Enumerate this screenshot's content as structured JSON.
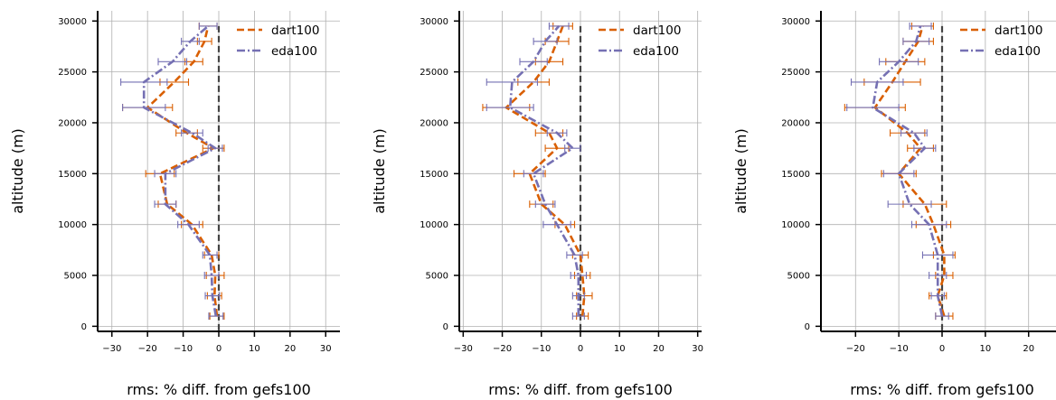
{
  "colors": {
    "dart": "#d95f02",
    "eda": "#7570b3",
    "zero_line": "#444444",
    "grid": "#b0b0b0",
    "axes": "#000000"
  },
  "chart_data": [
    {
      "type": "line",
      "xlabel": "rms: % diff. from gefs100",
      "ylabel": "altitude (m)",
      "xlim": [
        -34,
        34
      ],
      "ylim": [
        -500,
        31000
      ],
      "xticks": [
        -30,
        -20,
        -10,
        0,
        10,
        20,
        30
      ],
      "yticks": [
        0,
        5000,
        10000,
        15000,
        20000,
        25000,
        30000
      ],
      "grid": true,
      "legend": "top-right",
      "reference_line_x": 0,
      "y": [
        1000,
        3000,
        5000,
        7000,
        10000,
        12000,
        15000,
        17500,
        19000,
        21500,
        24000,
        26000,
        28000,
        29500
      ],
      "series": [
        {
          "name": "dart100",
          "style": "dashed",
          "x": [
            -0.5,
            -1.2,
            -1.0,
            -2.0,
            -7.5,
            -14.5,
            -16.5,
            -1.5,
            -9.0,
            -20.0,
            -12.5,
            -7.0,
            -4.0,
            -3.0
          ],
          "err": [
            2.0,
            2.0,
            2.5,
            2.0,
            3.0,
            2.5,
            4.0,
            3.0,
            3.0,
            7.0,
            4.0,
            2.5,
            2.0,
            2.5
          ]
        },
        {
          "name": "eda100",
          "style": "dashdot",
          "x": [
            -0.8,
            -1.8,
            -2.0,
            -2.5,
            -8.5,
            -15.0,
            -15.0,
            -1.0,
            -7.5,
            -21.0,
            -21.0,
            -13.0,
            -8.0,
            -3.0
          ],
          "err": [
            2.0,
            2.0,
            2.0,
            2.0,
            3.0,
            3.0,
            3.0,
            2.0,
            3.0,
            6.0,
            6.5,
            4.0,
            2.5,
            2.5
          ]
        }
      ]
    },
    {
      "type": "line",
      "xlabel": "rms: % diff. from gefs100",
      "ylabel": "altitude (m)",
      "xlim": [
        -31,
        31
      ],
      "ylim": [
        -500,
        31000
      ],
      "xticks": [
        -30,
        -20,
        -10,
        0,
        10,
        20,
        30
      ],
      "yticks": [
        0,
        5000,
        10000,
        15000,
        20000,
        25000,
        30000
      ],
      "grid": true,
      "legend": "top-right",
      "reference_line_x": 0,
      "y": [
        1000,
        3000,
        5000,
        7000,
        10000,
        12000,
        15000,
        17500,
        19000,
        21500,
        24000,
        26000,
        28000,
        29500
      ],
      "series": [
        {
          "name": "dart100",
          "style": "dashed",
          "x": [
            0.5,
            1.0,
            0.5,
            0.0,
            -4.0,
            -10.0,
            -13.0,
            -6.0,
            -8.0,
            -19.0,
            -12.0,
            -8.0,
            -6.0,
            -4.5
          ],
          "err": [
            1.5,
            2.0,
            2.0,
            2.0,
            2.5,
            3.0,
            4.0,
            3.0,
            3.5,
            6.0,
            4.0,
            3.5,
            3.0,
            2.5
          ]
        },
        {
          "name": "eda100",
          "style": "dashdot",
          "x": [
            -0.5,
            -0.5,
            -0.5,
            -1.5,
            -6.0,
            -9.0,
            -12.0,
            -2.0,
            -6.0,
            -18.0,
            -17.5,
            -12.0,
            -9.0,
            -5.5
          ],
          "err": [
            1.5,
            1.5,
            2.0,
            2.0,
            3.5,
            2.5,
            2.5,
            2.0,
            2.5,
            6.0,
            6.5,
            3.5,
            3.0,
            2.5
          ]
        }
      ]
    },
    {
      "type": "line",
      "xlabel": "rms: % diff. from gefs100",
      "ylabel": "altitude (m)",
      "xlim": [
        -28,
        28
      ],
      "ylim": [
        -500,
        31000
      ],
      "xticks": [
        -20,
        -10,
        0,
        10,
        20
      ],
      "yticks": [
        0,
        5000,
        10000,
        15000,
        20000,
        25000,
        30000
      ],
      "grid": true,
      "legend": "top-right",
      "reference_line_x": 0,
      "y": [
        1000,
        3000,
        5000,
        7000,
        10000,
        12000,
        15000,
        17500,
        19000,
        21500,
        24000,
        26000,
        28000,
        29500
      ],
      "series": [
        {
          "name": "dart100",
          "style": "dashed",
          "x": [
            0.5,
            -1.0,
            0.5,
            0.5,
            -2.0,
            -4.0,
            -10.0,
            -5.0,
            -8.0,
            -15.5,
            -11.5,
            -8.5,
            -5.5,
            -4.5
          ],
          "err": [
            2.0,
            2.0,
            2.0,
            2.5,
            4.0,
            5.0,
            4.0,
            3.0,
            4.0,
            7.0,
            6.5,
            4.5,
            3.5,
            2.5
          ]
        },
        {
          "name": "eda100",
          "style": "dashdot",
          "x": [
            0.0,
            -1.0,
            -1.0,
            -1.0,
            -3.0,
            -7.5,
            -10.0,
            -4.0,
            -6.5,
            -16.0,
            -15.0,
            -10.0,
            -6.0,
            -5.0
          ],
          "err": [
            1.5,
            1.5,
            2.0,
            3.5,
            4.0,
            5.0,
            3.5,
            2.5,
            3.0,
            6.0,
            6.0,
            4.5,
            3.0,
            2.5
          ]
        }
      ]
    }
  ]
}
